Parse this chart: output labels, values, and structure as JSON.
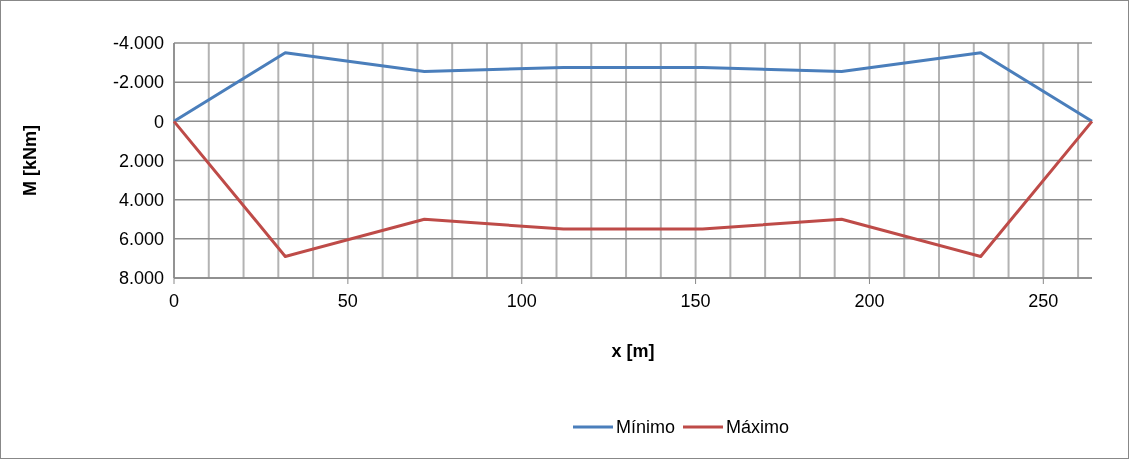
{
  "chart_data": {
    "type": "line",
    "xlabel": "x [m]",
    "ylabel": "M [kNm]",
    "x": [
      0,
      32,
      72,
      112,
      152,
      192,
      232,
      264
    ],
    "series": [
      {
        "name": "Mínimo",
        "color": "#4a7ebb",
        "values": [
          0,
          -3500,
          -2550,
          -2750,
          -2750,
          -2550,
          -3500,
          0
        ]
      },
      {
        "name": "Máximo",
        "color": "#be4b48",
        "values": [
          0,
          6900,
          5000,
          5500,
          5500,
          5000,
          6900,
          0
        ]
      }
    ],
    "xlim": [
      0,
      264
    ],
    "xticks": [
      0,
      {
        "value": 10,
        "label": null
      },
      {
        "value": 20,
        "label": null
      },
      {
        "value": 30,
        "label": null
      },
      {
        "value": 40,
        "label": null
      },
      50,
      {
        "value": 60,
        "label": null
      },
      {
        "value": 70,
        "label": null
      },
      {
        "value": 80,
        "label": null
      },
      {
        "value": 90,
        "label": null
      },
      100,
      {
        "value": 110,
        "label": null
      },
      {
        "value": 120,
        "label": null
      },
      {
        "value": 130,
        "label": null
      },
      {
        "value": 140,
        "label": null
      },
      150,
      {
        "value": 160,
        "label": null
      },
      {
        "value": 170,
        "label": null
      },
      {
        "value": 180,
        "label": null
      },
      {
        "value": 190,
        "label": null
      },
      200,
      {
        "value": 210,
        "label": null
      },
      {
        "value": 220,
        "label": null
      },
      {
        "value": 230,
        "label": null
      },
      {
        "value": 240,
        "label": null
      },
      250,
      {
        "value": 260,
        "label": null
      }
    ],
    "ylim": [
      8000,
      -4000
    ],
    "yticks": [
      {
        "value": -4000,
        "label": "-4.000"
      },
      {
        "value": -2000,
        "label": "-2.000"
      },
      0,
      {
        "value": 2000,
        "label": "2.000"
      },
      {
        "value": 4000,
        "label": "4.000"
      },
      {
        "value": 6000,
        "label": "6.000"
      },
      {
        "value": 8000,
        "label": "8.000"
      }
    ],
    "grid": true,
    "legend": "bottom",
    "marker": "none",
    "line_style": "solid"
  }
}
